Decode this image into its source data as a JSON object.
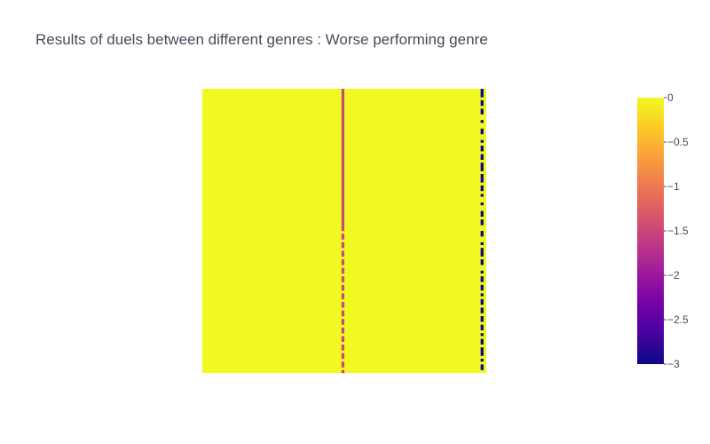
{
  "chart_data": {
    "type": "heatmap",
    "title": "Results of duels between different genres : Worse performing genre",
    "xlabel": "",
    "ylabel": "",
    "value_range": [
      -3,
      0
    ],
    "grid": false,
    "colorscale": [
      [
        0.0,
        "#0d0887"
      ],
      [
        0.111,
        "#46039f"
      ],
      [
        0.222,
        "#7201a8"
      ],
      [
        0.333,
        "#9c179e"
      ],
      [
        0.444,
        "#bd3786"
      ],
      [
        0.556,
        "#d8576b"
      ],
      [
        0.667,
        "#ed7953"
      ],
      [
        0.778,
        "#fb9f3a"
      ],
      [
        0.889,
        "#fdca26"
      ],
      [
        1.0,
        "#f0f921"
      ]
    ],
    "colorbar": {
      "placement": "right",
      "ticks": [
        0,
        -0.5,
        -1,
        -1.5,
        -2,
        -2.5,
        -3
      ],
      "tick_labels": [
        "0",
        "−0.5",
        "−1",
        "−1.5",
        "−2",
        "−2.5",
        "−3"
      ]
    },
    "background_value": 0,
    "n_rows": 100,
    "n_cols": 100,
    "columns": [
      {
        "col": 49,
        "segments": [
          {
            "rows": [
              0,
              47
            ],
            "value": -1.5
          },
          {
            "rows": [
              48,
              99
            ],
            "value": -1.5,
            "pattern": "dashed"
          }
        ]
      },
      {
        "col": 98,
        "segments": [
          {
            "rows": [
              0,
              2
            ],
            "value": -3
          },
          {
            "rows": [
              4,
              5
            ],
            "value": -3
          },
          {
            "rows": [
              7,
              8
            ],
            "value": -3
          },
          {
            "rows": [
              11,
              11
            ],
            "value": -3
          },
          {
            "rows": [
              14,
              15
            ],
            "value": -3
          },
          {
            "rows": [
              18,
              18
            ],
            "value": -3
          },
          {
            "rows": [
              20,
              21
            ],
            "value": -3
          },
          {
            "rows": [
              23,
              24
            ],
            "value": -3
          },
          {
            "rows": [
              26,
              28
            ],
            "value": -3
          },
          {
            "rows": [
              30,
              32
            ],
            "value": -3
          },
          {
            "rows": [
              34,
              35
            ],
            "value": -3
          },
          {
            "rows": [
              37,
              37
            ],
            "value": -3
          },
          {
            "rows": [
              40,
              40
            ],
            "value": -3
          },
          {
            "rows": [
              43,
              44
            ],
            "value": -3
          },
          {
            "rows": [
              46,
              47
            ],
            "value": -3
          },
          {
            "rows": [
              50,
              51
            ],
            "value": -3
          },
          {
            "rows": [
              54,
              54
            ],
            "value": -3
          },
          {
            "rows": [
              56,
              58
            ],
            "value": -3
          },
          {
            "rows": [
              60,
              61
            ],
            "value": -3
          },
          {
            "rows": [
              64,
              64
            ],
            "value": -3
          },
          {
            "rows": [
              66,
              67
            ],
            "value": -3
          },
          {
            "rows": [
              69,
              70
            ],
            "value": -3
          },
          {
            "rows": [
              72,
              72
            ],
            "value": -3
          },
          {
            "rows": [
              74,
              75
            ],
            "value": -3
          },
          {
            "rows": [
              77,
              78
            ],
            "value": -3
          },
          {
            "rows": [
              80,
              81
            ],
            "value": -3
          },
          {
            "rows": [
              83,
              84
            ],
            "value": -3
          },
          {
            "rows": [
              86,
              86
            ],
            "value": -3
          },
          {
            "rows": [
              88,
              89
            ],
            "value": -3
          },
          {
            "rows": [
              91,
              93
            ],
            "value": -3
          },
          {
            "rows": [
              95,
              95
            ],
            "value": -3
          },
          {
            "rows": [
              97,
              98
            ],
            "value": -3
          }
        ]
      }
    ]
  }
}
